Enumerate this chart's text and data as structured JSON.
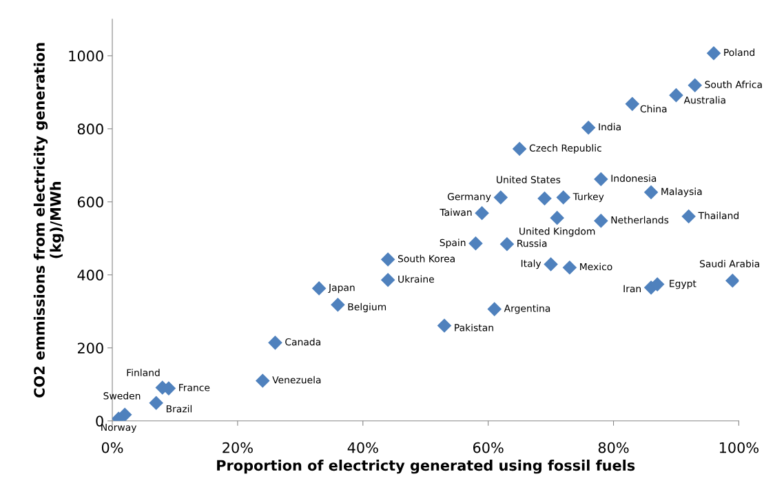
{
  "chart_data": {
    "type": "scatter",
    "xlabel": "Proportion of electricty generated using fossil fuels",
    "ylabel": "CO2 emmissions from electricity generation\n(kg)/MWh",
    "x": [
      96,
      93,
      90,
      83,
      76,
      65,
      78,
      86,
      92,
      62,
      69,
      72,
      59,
      71,
      78,
      58,
      63,
      44,
      44,
      70,
      73,
      99,
      86,
      87,
      33,
      36,
      61,
      53,
      26,
      24,
      8,
      9,
      7,
      2,
      1
    ],
    "series": [
      {
        "color": "#4f81bd",
        "values": [
          1007,
          919,
          892,
          868,
          803,
          745,
          662,
          626,
          560,
          612,
          609,
          612,
          569,
          556,
          548,
          486,
          484,
          442,
          386,
          429,
          420,
          384,
          365,
          374,
          363,
          318,
          306,
          261,
          214,
          110,
          91,
          89,
          49,
          17,
          6
        ]
      }
    ],
    "annotations": [
      {
        "text": "Poland",
        "x": 96,
        "y": 1007
      },
      {
        "text": "South Africa",
        "x": 93,
        "y": 919
      },
      {
        "text": "Australia",
        "x": 90,
        "y": 892
      },
      {
        "text": "China",
        "x": 83,
        "y": 868
      },
      {
        "text": "India",
        "x": 76,
        "y": 803
      },
      {
        "text": "Czech Republic",
        "x": 65,
        "y": 745
      },
      {
        "text": "Indonesia",
        "x": 78,
        "y": 662
      },
      {
        "text": "Malaysia",
        "x": 86,
        "y": 626
      },
      {
        "text": "Thailand",
        "x": 92,
        "y": 560
      },
      {
        "text": "Germany",
        "x": 62,
        "y": 612
      },
      {
        "text": "United States",
        "x": 69,
        "y": 609
      },
      {
        "text": "Turkey",
        "x": 72,
        "y": 612
      },
      {
        "text": "Taiwan",
        "x": 59,
        "y": 569
      },
      {
        "text": "United Kingdom",
        "x": 71,
        "y": 556
      },
      {
        "text": "Netherlands",
        "x": 78,
        "y": 548
      },
      {
        "text": "Spain",
        "x": 58,
        "y": 486
      },
      {
        "text": "Russia",
        "x": 63,
        "y": 484
      },
      {
        "text": "South Korea",
        "x": 44,
        "y": 442
      },
      {
        "text": "Ukraine",
        "x": 44,
        "y": 386
      },
      {
        "text": "Italy",
        "x": 70,
        "y": 429
      },
      {
        "text": "Mexico",
        "x": 73,
        "y": 420
      },
      {
        "text": "Saudi Arabia",
        "x": 99,
        "y": 384
      },
      {
        "text": "Iran",
        "x": 86,
        "y": 365
      },
      {
        "text": "Egypt",
        "x": 87,
        "y": 374
      },
      {
        "text": "Japan",
        "x": 33,
        "y": 363
      },
      {
        "text": "Belgium",
        "x": 36,
        "y": 318
      },
      {
        "text": "Argentina",
        "x": 61,
        "y": 306
      },
      {
        "text": "Pakistan",
        "x": 53,
        "y": 261
      },
      {
        "text": "Canada",
        "x": 26,
        "y": 214
      },
      {
        "text": "Venezuela",
        "x": 24,
        "y": 110
      },
      {
        "text": "Finland",
        "x": 8,
        "y": 91
      },
      {
        "text": "France",
        "x": 9,
        "y": 89
      },
      {
        "text": "Brazil",
        "x": 7,
        "y": 49
      },
      {
        "text": "Sweden",
        "x": 2,
        "y": 17
      },
      {
        "text": "Norway",
        "x": 1,
        "y": 6
      }
    ],
    "xlim": [
      0,
      100
    ],
    "xticks": [
      {
        "value": 0,
        "label": "0%"
      },
      {
        "value": 20,
        "label": "20%"
      },
      {
        "value": 40,
        "label": "40%"
      },
      {
        "value": 60,
        "label": "60%"
      },
      {
        "value": 80,
        "label": "80%"
      },
      {
        "value": 100,
        "label": "100%"
      }
    ],
    "ylim": [
      0,
      1100
    ],
    "yticks": [
      0,
      200,
      400,
      600,
      800,
      1000
    ],
    "grid": false,
    "legend": false,
    "marker": "diamond"
  }
}
